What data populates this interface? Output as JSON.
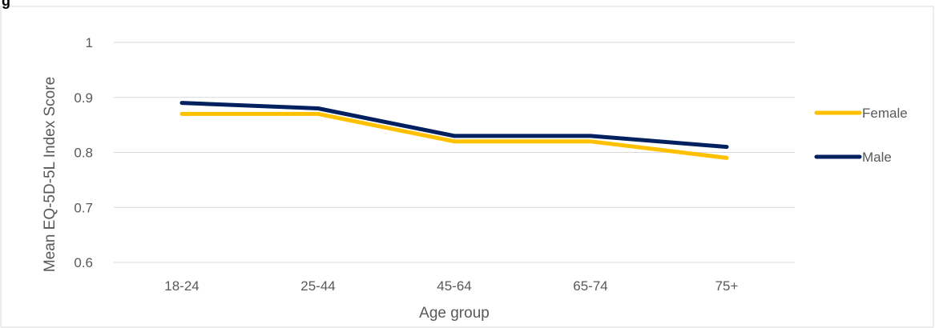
{
  "figure": {
    "title_fragment": "g"
  },
  "chart_data": {
    "type": "line",
    "categories": [
      "18-24",
      "25-44",
      "45-64",
      "65-74",
      "75+"
    ],
    "series": [
      {
        "name": "Female",
        "values": [
          0.87,
          0.87,
          0.82,
          0.82,
          0.79
        ],
        "color": "#FFC000"
      },
      {
        "name": "Male",
        "values": [
          0.89,
          0.88,
          0.83,
          0.83,
          0.81
        ],
        "color": "#002060"
      }
    ],
    "xlabel": "Age group",
    "ylabel": "Mean EQ-5D-5L Index Score",
    "ylim": [
      0.6,
      1
    ],
    "yticks": [
      "0.6",
      "0.7",
      "0.8",
      "0.9",
      "1"
    ],
    "grid": true,
    "legend_position": "right",
    "colors": {
      "gridline": "#D9D9D9",
      "text": "#595959",
      "border": "#D9D9D9"
    }
  }
}
